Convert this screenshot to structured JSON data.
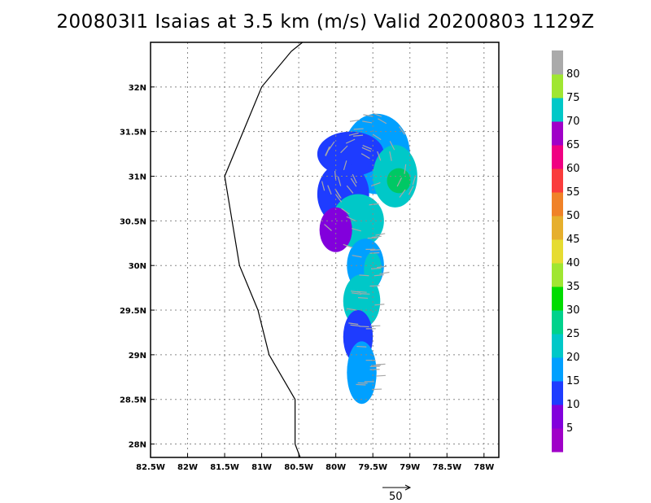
{
  "title": "200803I1 Isaias at 3.5 km (m/s) Valid 20200803 1129Z",
  "map": {
    "lon_range": [
      -82.5,
      -77.8
    ],
    "lat_range": [
      27.85,
      32.5
    ],
    "lon_ticks": [
      {
        "value": -82.5,
        "label": "82.5W"
      },
      {
        "value": -82.0,
        "label": "82W"
      },
      {
        "value": -81.5,
        "label": "81.5W"
      },
      {
        "value": -81.0,
        "label": "81W"
      },
      {
        "value": -80.5,
        "label": "80.5W"
      },
      {
        "value": -80.0,
        "label": "80W"
      },
      {
        "value": -79.5,
        "label": "79.5W"
      },
      {
        "value": -79.0,
        "label": "79W"
      },
      {
        "value": -78.5,
        "label": "78.5W"
      },
      {
        "value": -78.0,
        "label": "78W"
      }
    ],
    "lat_ticks": [
      {
        "value": 28.0,
        "label": "28N"
      },
      {
        "value": 28.5,
        "label": "28.5N"
      },
      {
        "value": 29.0,
        "label": "29N"
      },
      {
        "value": 29.5,
        "label": "29.5N"
      },
      {
        "value": 30.0,
        "label": "30N"
      },
      {
        "value": 30.5,
        "label": "30.5N"
      },
      {
        "value": 31.0,
        "label": "31N"
      },
      {
        "value": 31.5,
        "label": "31.5N"
      },
      {
        "value": 32.0,
        "label": "32N"
      }
    ],
    "coastline": [
      [
        -80.45,
        32.5
      ],
      [
        -80.6,
        32.4
      ],
      [
        -81.0,
        32.0
      ],
      [
        -81.5,
        31.0
      ],
      [
        -81.3,
        30.0
      ],
      [
        -81.05,
        29.5
      ],
      [
        -80.9,
        29.0
      ],
      [
        -80.55,
        28.5
      ],
      [
        -80.55,
        28.0
      ],
      [
        -80.48,
        27.85
      ]
    ],
    "grid": true
  },
  "reference_vector": {
    "label": "50",
    "value": 50
  },
  "colorbar": {
    "levels": [
      "5",
      "10",
      "15",
      "20",
      "25",
      "30",
      "35",
      "40",
      "45",
      "50",
      "55",
      "60",
      "65",
      "70",
      "75",
      "80"
    ],
    "colors": [
      "#a000c8",
      "#8200dc",
      "#1e3cff",
      "#00a0ff",
      "#00c8c8",
      "#00d28c",
      "#00dc00",
      "#a0e632",
      "#e6dc32",
      "#e6af2d",
      "#f08228",
      "#fa3c3c",
      "#f00082",
      "#a000c8",
      "#00c8c8",
      "#a0e632",
      "#aaaaaa"
    ]
  },
  "velocity_field": {
    "colors": {
      "low": "#1e3cff",
      "mid": "#00a0ff",
      "high": "#00c8c8",
      "peak": "#00c864",
      "min": "#8200dc"
    }
  }
}
